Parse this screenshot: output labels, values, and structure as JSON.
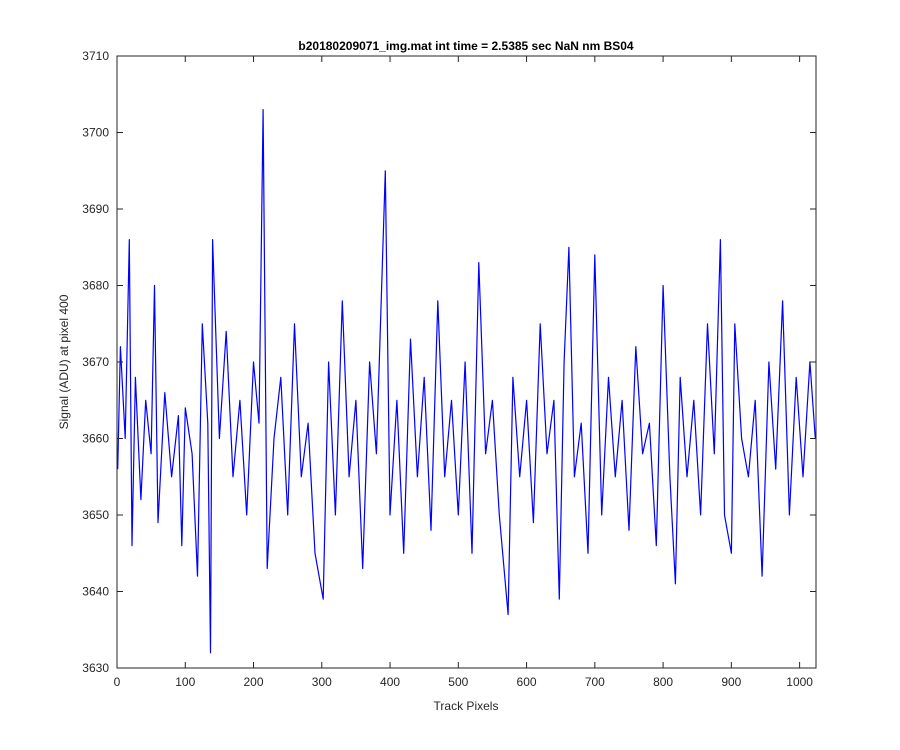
{
  "chart_data": {
    "type": "line",
    "title": "b20180209071_img.mat int time = 2.5385 sec  NaN nm BS04",
    "xlabel": "Track Pixels",
    "ylabel": "Signal (ADU) at pixel 400",
    "xlim": [
      0,
      1024
    ],
    "ylim": [
      3630,
      3710
    ],
    "xticks": [
      0,
      100,
      200,
      300,
      400,
      500,
      600,
      700,
      800,
      900,
      1000
    ],
    "yticks": [
      3630,
      3640,
      3650,
      3660,
      3670,
      3680,
      3690,
      3700,
      3710
    ],
    "grid": false,
    "legend": "none",
    "series": [
      {
        "color": "#0000ff",
        "x": [
          1,
          5,
          12,
          18,
          22,
          27,
          35,
          42,
          50,
          55,
          60,
          70,
          80,
          90,
          95,
          100,
          110,
          118,
          125,
          133,
          137,
          140,
          150,
          160,
          170,
          180,
          190,
          200,
          208,
          214,
          220,
          230,
          240,
          250,
          260,
          270,
          280,
          290,
          302,
          310,
          320,
          330,
          340,
          350,
          360,
          370,
          380,
          393,
          400,
          410,
          420,
          430,
          440,
          450,
          460,
          470,
          480,
          490,
          500,
          510,
          520,
          530,
          540,
          550,
          560,
          573,
          580,
          590,
          600,
          610,
          620,
          630,
          640,
          648,
          655,
          662,
          670,
          680,
          690,
          700,
          710,
          720,
          730,
          740,
          750,
          760,
          770,
          780,
          790,
          800,
          810,
          818,
          825,
          835,
          845,
          855,
          865,
          875,
          884,
          890,
          900,
          905,
          915,
          925,
          935,
          945,
          955,
          965,
          975,
          985,
          995,
          1005,
          1015,
          1023
        ],
        "y": [
          3656,
          3672,
          3660,
          3686,
          3646,
          3668,
          3652,
          3665,
          3658,
          3680,
          3649,
          3666,
          3655,
          3663,
          3646,
          3664,
          3658,
          3642,
          3675,
          3662,
          3632,
          3686,
          3660,
          3674,
          3655,
          3665,
          3650,
          3670,
          3662,
          3703,
          3643,
          3660,
          3668,
          3650,
          3675,
          3655,
          3662,
          3645,
          3639,
          3670,
          3650,
          3678,
          3655,
          3665,
          3643,
          3670,
          3658,
          3695,
          3650,
          3665,
          3645,
          3673,
          3655,
          3668,
          3648,
          3678,
          3655,
          3665,
          3650,
          3670,
          3645,
          3683,
          3658,
          3665,
          3650,
          3637,
          3668,
          3655,
          3665,
          3649,
          3675,
          3658,
          3665,
          3639,
          3670,
          3685,
          3655,
          3662,
          3645,
          3684,
          3650,
          3668,
          3655,
          3665,
          3648,
          3672,
          3658,
          3662,
          3646,
          3680,
          3655,
          3641,
          3668,
          3655,
          3665,
          3650,
          3675,
          3658,
          3686,
          3650,
          3645,
          3675,
          3660,
          3655,
          3665,
          3642,
          3670,
          3656,
          3678,
          3650,
          3668,
          3655,
          3670,
          3660
        ]
      }
    ]
  }
}
